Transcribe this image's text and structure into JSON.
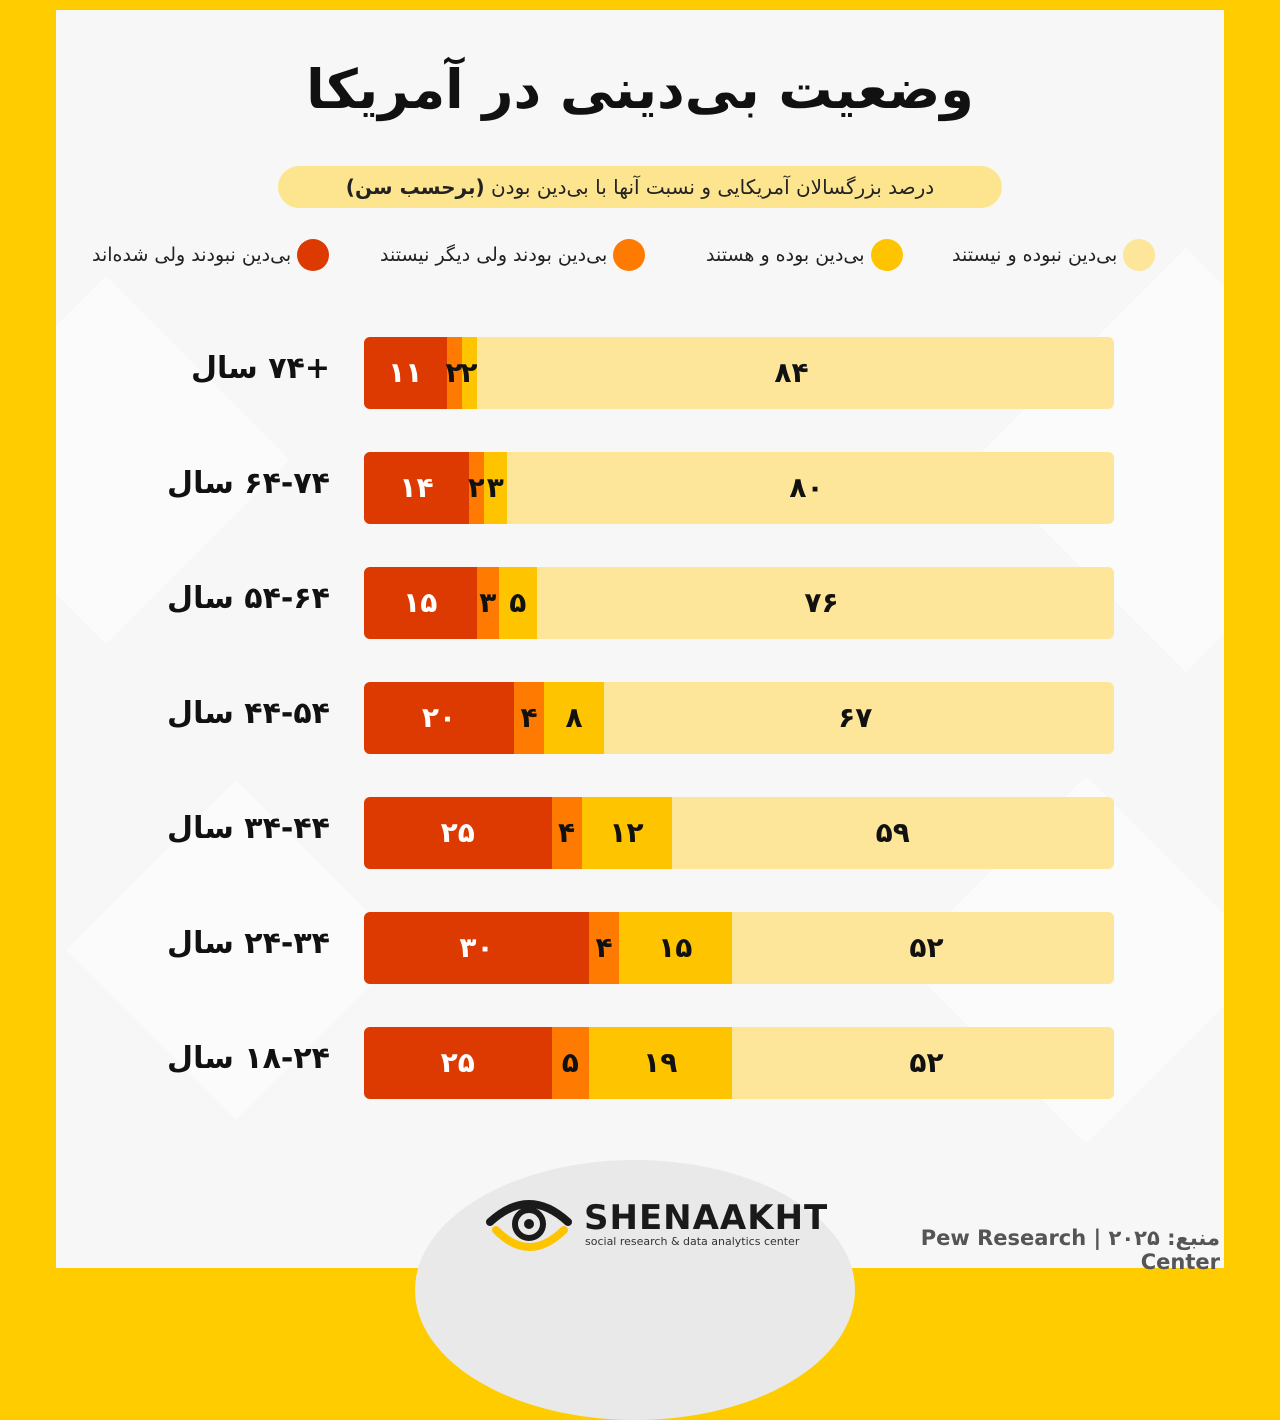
{
  "title": "وضعیت بی‌دینی در آمریکا",
  "subtitle": {
    "main": "درصد بزرگسالان آمریکایی و نسبت آنها با بی‌دین بودن",
    "bold": "(برحسب سن)"
  },
  "colors": {
    "never": "#fde699",
    "still": "#ffc400",
    "formerly": "#ff7a00",
    "became": "#dc3a00"
  },
  "legend": [
    {
      "label": "بی‌دین نبوده و نیستند",
      "color": "#fde699"
    },
    {
      "label": "بی‌دین بوده و هستند",
      "color": "#ffc400"
    },
    {
      "label": "بی‌دین بودند ولی دیگر نیستند",
      "color": "#ff7a00"
    },
    {
      "label": "بی‌دین نبودند ولی شده‌اند",
      "color": "#dc3a00"
    }
  ],
  "chart_data": {
    "type": "bar",
    "orientation": "horizontal-stacked",
    "categories": [
      "+۷۴ سال",
      "۶۴-۷۴ سال",
      "۵۴-۶۴ سال",
      "۴۴-۵۴ سال",
      "۳۴-۴۴ سال",
      "۲۴-۳۴ سال",
      "۱۸-۲۴ سال"
    ],
    "series": [
      {
        "name": "بی‌دین نبودند ولی شده‌اند",
        "values": [
          11,
          14,
          15,
          20,
          25,
          30,
          25
        ],
        "labels": [
          "۱۱",
          "۱۴",
          "۱۵",
          "۲۰",
          "۲۵",
          "۳۰",
          "۲۵"
        ]
      },
      {
        "name": "بی‌دین بودند ولی دیگر نیستند",
        "values": [
          2,
          2,
          3,
          4,
          4,
          4,
          5
        ],
        "labels": [
          "۲",
          "۲",
          "۳",
          "۴",
          "۴",
          "۴",
          "۵"
        ]
      },
      {
        "name": "بی‌دین بوده و هستند",
        "values": [
          2,
          3,
          5,
          8,
          12,
          15,
          19
        ],
        "labels": [
          "۲",
          "۳",
          "۵",
          "۸",
          "۱۲",
          "۱۵",
          "۱۹"
        ]
      },
      {
        "name": "بی‌دین نبوده و نیستند",
        "values": [
          84,
          80,
          76,
          67,
          59,
          52,
          52
        ],
        "labels": [
          "۸۴",
          "۸۰",
          "۷۶",
          "۶۷",
          "۵۹",
          "۵۲",
          "۵۲"
        ]
      }
    ],
    "xlim": [
      0,
      100
    ]
  },
  "brand": {
    "name": "SHENAAKHT",
    "tagline": "social research & data analytics center"
  },
  "source": "منبع: ۲۰۲۵ | Pew Research Center"
}
